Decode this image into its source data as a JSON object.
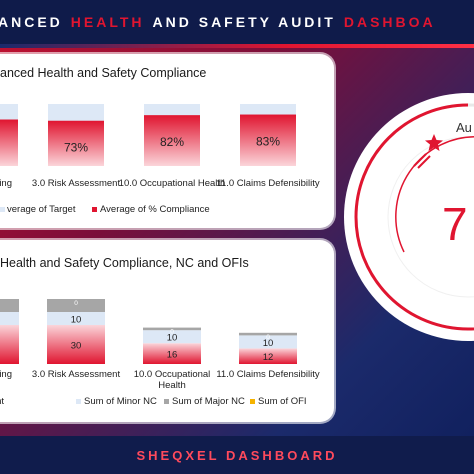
{
  "header": {
    "title_part1": "ANCED",
    "title_part2": "HEALTH",
    "title_part3": "AND SAFETY AUDIT",
    "title_part4": "DASHBOA"
  },
  "panel_top": {
    "title": "anced Health and Safety Compliance"
  },
  "panel_bottom": {
    "title": "Health and Safety Compliance, NC and OFIs"
  },
  "gauge": {
    "label": "Au",
    "value_text": "7",
    "accent_color": "#e01530"
  },
  "footer": {
    "label": "SHEQXEL DASHBOARD"
  },
  "chart_data": [
    {
      "type": "bar",
      "categories": [
        "aining",
        "3.0 Risk Assessment",
        "10.0 Occupational Health",
        "11.0 Claims Defensibility"
      ],
      "series": [
        {
          "name": "verage of Target",
          "values": [
            100,
            100,
            100,
            100
          ]
        },
        {
          "name": "Average of % Compliance",
          "values": [
            null,
            73,
            82,
            83
          ]
        }
      ],
      "data_labels": [
        "%",
        "73%",
        "82%",
        "83%"
      ],
      "ylim": [
        0,
        100
      ],
      "legend": "bottom",
      "colors": {
        "target": "#dde8f6",
        "compliance": "#e01530"
      }
    },
    {
      "type": "bar",
      "stacked": true,
      "categories": [
        "aining",
        "3.0 Risk Assessment",
        "10.0 Occupational Health",
        "11.0 Claims Defensibility"
      ],
      "series": [
        {
          "name": "nt",
          "values": [
            30,
            30,
            16,
            12
          ]
        },
        {
          "name": "Sum of Minor NC",
          "values": [
            10,
            10,
            10,
            10
          ]
        },
        {
          "name": "Sum of Major NC",
          "values": [
            10,
            10,
            2,
            2
          ]
        },
        {
          "name": "Sum of OFI",
          "values": [
            0,
            0,
            0,
            0
          ]
        }
      ],
      "data_labels": {
        "3.0 Risk Assessment": [
          "30",
          "10",
          "0"
        ],
        "10.0 Occupational Health": [
          "16",
          "10",
          "0"
        ],
        "11.0 Claims Defensibility": [
          "12",
          "10",
          "0"
        ]
      },
      "legend": "bottom",
      "colors": {
        "compliance": "#e01530",
        "minor": "#dde8f6",
        "major": "#a6a6a6",
        "ofi": "#f5b300"
      }
    }
  ]
}
